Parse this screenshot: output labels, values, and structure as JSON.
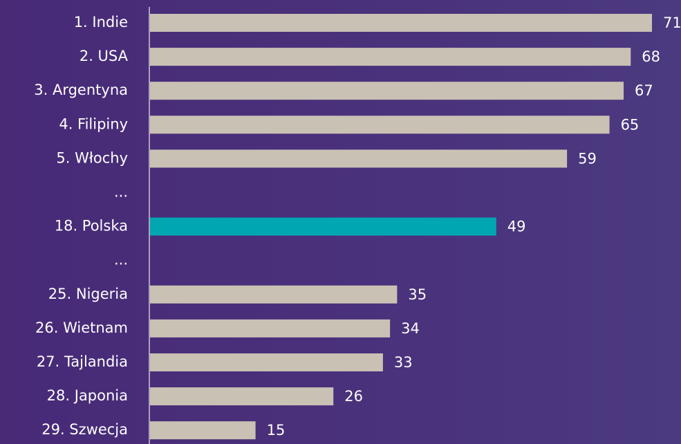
{
  "chart_data": {
    "type": "bar",
    "orientation": "horizontal",
    "categories": [
      "1. Indie",
      "2. USA",
      "3. Argentyna",
      "4. Filipiny",
      "5. Włochy",
      "...",
      "18. Polska",
      "...",
      "25. Nigeria",
      "26. Wietnam",
      "27. Tajlandia",
      "28. Japonia",
      "29. Szwecja"
    ],
    "values": [
      71,
      68,
      67,
      65,
      59,
      null,
      49,
      null,
      35,
      34,
      33,
      26,
      15
    ],
    "colors": [
      "#c9c1b4",
      "#c9c1b4",
      "#c9c1b4",
      "#c9c1b4",
      "#c9c1b4",
      null,
      "#00a7b3",
      null,
      "#c9c1b4",
      "#c9c1b4",
      "#c9c1b4",
      "#c9c1b4",
      "#c9c1b4"
    ]
  }
}
